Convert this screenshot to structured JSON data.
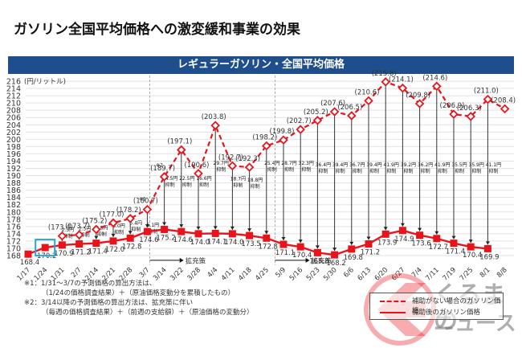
{
  "page_title": "ガソリン全国平均価格への激変緩和事業の効果",
  "banner_title": "レギュラーガソリン・全国平均価格",
  "chart_data": {
    "type": "line",
    "title": "レギュラーガソリン・全国平均価格",
    "ylabel": "(円/リットル)",
    "xlabel": "",
    "ylim": [
      168,
      216
    ],
    "yticks": [
      216,
      214,
      212,
      210,
      208,
      206,
      204,
      202,
      200,
      198,
      196,
      194,
      192,
      190,
      188,
      186,
      184,
      182,
      180,
      178,
      176,
      174,
      172,
      170,
      168
    ],
    "grid": true,
    "categories": [
      "1/17",
      "1/24",
      "1/31",
      "2/7",
      "2/14",
      "2/21",
      "2/28",
      "3/7",
      "3/14",
      "3/22",
      "3/28",
      "4/4",
      "4/11",
      "4/18",
      "4/25",
      "5/9",
      "5/16",
      "5/23",
      "5/30",
      "6/6",
      "6/13",
      "6/20",
      "6/27",
      "7/4",
      "7/11",
      "7/19",
      "7/25",
      "8/1",
      "8/8"
    ],
    "series": [
      {
        "name": "補助がない場合のガソリン価格",
        "style": "dashed",
        "color": "#e8141c",
        "start_index": 2,
        "values": [
          173.4,
          173.7,
          175.2,
          177.0,
          178.2,
          180.7,
          189.7,
          197.1,
          190.6,
          203.8,
          192.7,
          192.3,
          198.2,
          199.8,
          202.7,
          205.2,
          207.6,
          206.5,
          210.6,
          215.8,
          214.1,
          209.8,
          214.6,
          206.9,
          206.3,
          211.0,
          208.4
        ],
        "value_labels": [
          "(173.4)",
          "(173.7)",
          "(175.2)",
          "(177.0)",
          "(178.2)",
          "(180.7)",
          "(189.7)",
          "(197.1)",
          "(190.6)",
          "(203.8)",
          "(192.7)",
          "(192.3)",
          "(198.2)",
          "(199.8)",
          "(202.7)",
          "(205.2)",
          "(207.6)",
          "(206.5)",
          "(210.6)",
          "(215.8)",
          "(214.1)",
          "(209.8)",
          "(214.6)",
          "(206.9)",
          "(206.3)",
          "(211.0)",
          "(208.4)"
        ]
      },
      {
        "name": "補助後のガソリン価格",
        "style": "solid",
        "color": "#e8141c",
        "start_index": 0,
        "values": [
          168.4,
          170.2,
          170.9,
          171.2,
          171.4,
          172.0,
          172.8,
          174.6,
          175.2,
          174.6,
          174.0,
          174.1,
          174.0,
          173.5,
          172.8,
          171.1,
          170.4,
          168.8,
          168.2,
          169.8,
          171.2,
          173.9,
          174.9,
          173.6,
          172.7,
          171.4,
          170.4,
          169.9
        ]
      }
    ],
    "suppression": {
      "unit_label": "円",
      "suffix": "抑制",
      "values": [
        2.5,
        2.5,
        3.8,
        5.0,
        5.4,
        6.1,
        14.5,
        22.5,
        16.6,
        29.7,
        18.7,
        18.8,
        25.4,
        28.7,
        32.3,
        36.4,
        39.4,
        36.7,
        39.4,
        41.9,
        39.2,
        36.2,
        41.9,
        35.5,
        35.9,
        41.1
      ]
    },
    "annotations": {
      "note1_marker": "※1",
      "note2_marker": "※2",
      "expansion_label": "拡充策",
      "highlight_category": "1/24"
    },
    "legend": {
      "placement": "bottom-right",
      "entries": [
        "補助がない場合のガソリン価格",
        "補助後のガソリン価格"
      ]
    }
  },
  "notes": {
    "note1_line1": "※1：1/31～3/7の予測価格の算出方法は、",
    "note1_line2": "（1/24の価格調査結果）＋（原油価格変動分を累積したもの）",
    "note2_line1": "※2：3/14以降の予測価格の算出方法は、拡充策に伴い",
    "note2_line2": "（毎週の価格調査結果）＋（前週の支給額）＋（原油価格の変動分）"
  },
  "watermark": {
    "line1": "くるまの",
    "line2": "ニュース"
  }
}
